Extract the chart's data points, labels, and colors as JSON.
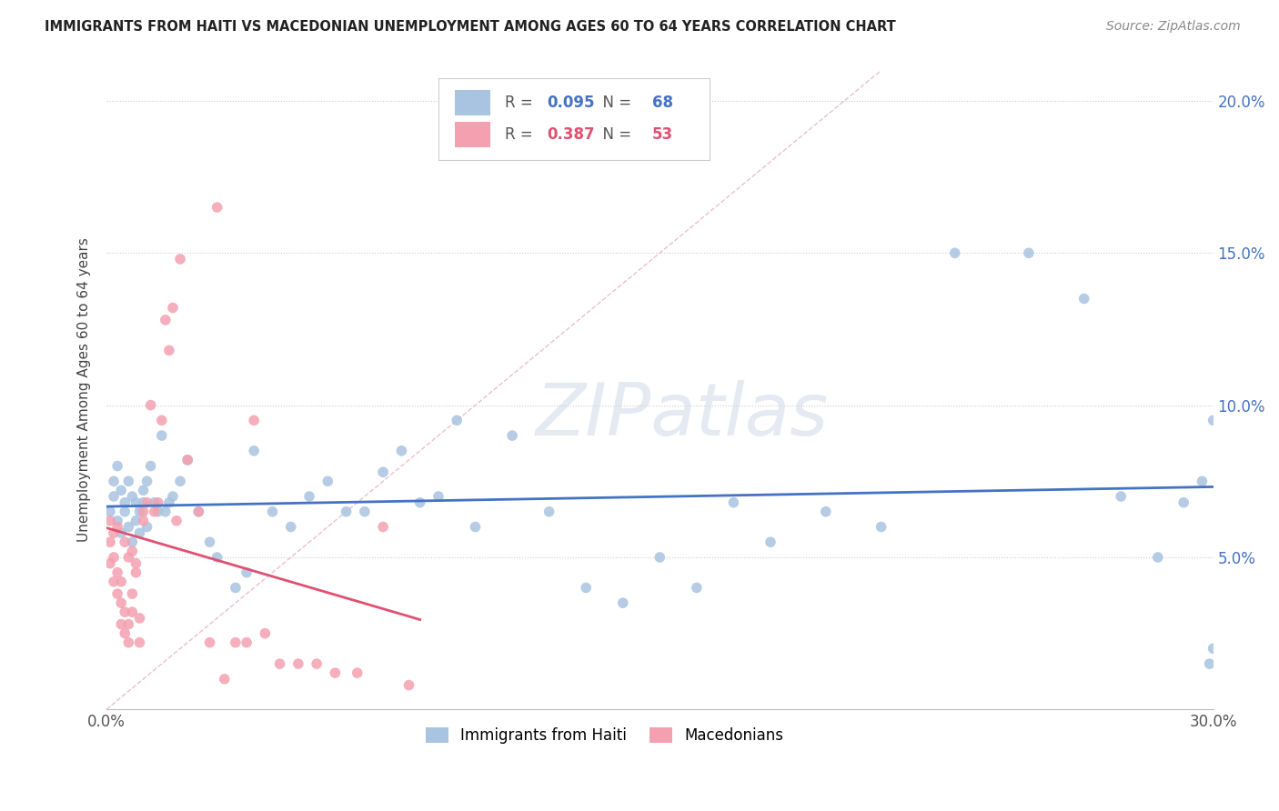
{
  "title": "IMMIGRANTS FROM HAITI VS MACEDONIAN UNEMPLOYMENT AMONG AGES 60 TO 64 YEARS CORRELATION CHART",
  "source": "Source: ZipAtlas.com",
  "ylabel": "Unemployment Among Ages 60 to 64 years",
  "xlim": [
    0.0,
    0.3
  ],
  "ylim": [
    0.0,
    0.21
  ],
  "yticks": [
    0.05,
    0.1,
    0.15,
    0.2
  ],
  "ytick_labels": [
    "5.0%",
    "10.0%",
    "15.0%",
    "20.0%"
  ],
  "watermark": "ZIPatlas",
  "haiti_dot_color": "#a8c4e0",
  "haiti_line_color": "#4472c4",
  "macedonia_dot_color": "#f4a0b0",
  "macedonia_line_color": "#e05070",
  "diagonal_color": "#e8b0c0",
  "haiti_R": "0.095",
  "haiti_N": "68",
  "macedonia_R": "0.387",
  "macedonia_N": "53",
  "haiti_scatter_x": [
    0.001,
    0.002,
    0.002,
    0.003,
    0.003,
    0.004,
    0.004,
    0.005,
    0.005,
    0.006,
    0.006,
    0.007,
    0.007,
    0.008,
    0.008,
    0.009,
    0.009,
    0.01,
    0.01,
    0.011,
    0.011,
    0.012,
    0.013,
    0.014,
    0.015,
    0.016,
    0.017,
    0.018,
    0.02,
    0.022,
    0.025,
    0.028,
    0.03,
    0.035,
    0.038,
    0.04,
    0.045,
    0.05,
    0.055,
    0.06,
    0.065,
    0.07,
    0.075,
    0.08,
    0.085,
    0.09,
    0.095,
    0.1,
    0.11,
    0.12,
    0.13,
    0.14,
    0.15,
    0.16,
    0.17,
    0.18,
    0.195,
    0.21,
    0.23,
    0.25,
    0.265,
    0.275,
    0.285,
    0.292,
    0.297,
    0.299,
    0.3,
    0.3
  ],
  "haiti_scatter_y": [
    0.065,
    0.07,
    0.075,
    0.062,
    0.08,
    0.058,
    0.072,
    0.065,
    0.068,
    0.06,
    0.075,
    0.055,
    0.07,
    0.062,
    0.068,
    0.058,
    0.065,
    0.068,
    0.072,
    0.06,
    0.075,
    0.08,
    0.068,
    0.065,
    0.09,
    0.065,
    0.068,
    0.07,
    0.075,
    0.082,
    0.065,
    0.055,
    0.05,
    0.04,
    0.045,
    0.085,
    0.065,
    0.06,
    0.07,
    0.075,
    0.065,
    0.065,
    0.078,
    0.085,
    0.068,
    0.07,
    0.095,
    0.06,
    0.09,
    0.065,
    0.04,
    0.035,
    0.05,
    0.04,
    0.068,
    0.055,
    0.065,
    0.06,
    0.15,
    0.15,
    0.135,
    0.07,
    0.05,
    0.068,
    0.075,
    0.015,
    0.02,
    0.095
  ],
  "macedonia_scatter_x": [
    0.001,
    0.001,
    0.001,
    0.002,
    0.002,
    0.002,
    0.003,
    0.003,
    0.003,
    0.004,
    0.004,
    0.004,
    0.005,
    0.005,
    0.005,
    0.006,
    0.006,
    0.006,
    0.007,
    0.007,
    0.007,
    0.008,
    0.008,
    0.009,
    0.009,
    0.01,
    0.01,
    0.011,
    0.012,
    0.013,
    0.014,
    0.015,
    0.016,
    0.017,
    0.018,
    0.019,
    0.02,
    0.022,
    0.025,
    0.028,
    0.03,
    0.032,
    0.035,
    0.038,
    0.04,
    0.043,
    0.047,
    0.052,
    0.057,
    0.062,
    0.068,
    0.075,
    0.082
  ],
  "macedonia_scatter_y": [
    0.055,
    0.062,
    0.048,
    0.05,
    0.042,
    0.058,
    0.045,
    0.038,
    0.06,
    0.035,
    0.042,
    0.028,
    0.032,
    0.025,
    0.055,
    0.028,
    0.022,
    0.05,
    0.032,
    0.038,
    0.052,
    0.045,
    0.048,
    0.03,
    0.022,
    0.062,
    0.065,
    0.068,
    0.1,
    0.065,
    0.068,
    0.095,
    0.128,
    0.118,
    0.132,
    0.062,
    0.148,
    0.082,
    0.065,
    0.022,
    0.165,
    0.01,
    0.022,
    0.022,
    0.095,
    0.025,
    0.015,
    0.015,
    0.015,
    0.012,
    0.012,
    0.06,
    0.008
  ]
}
